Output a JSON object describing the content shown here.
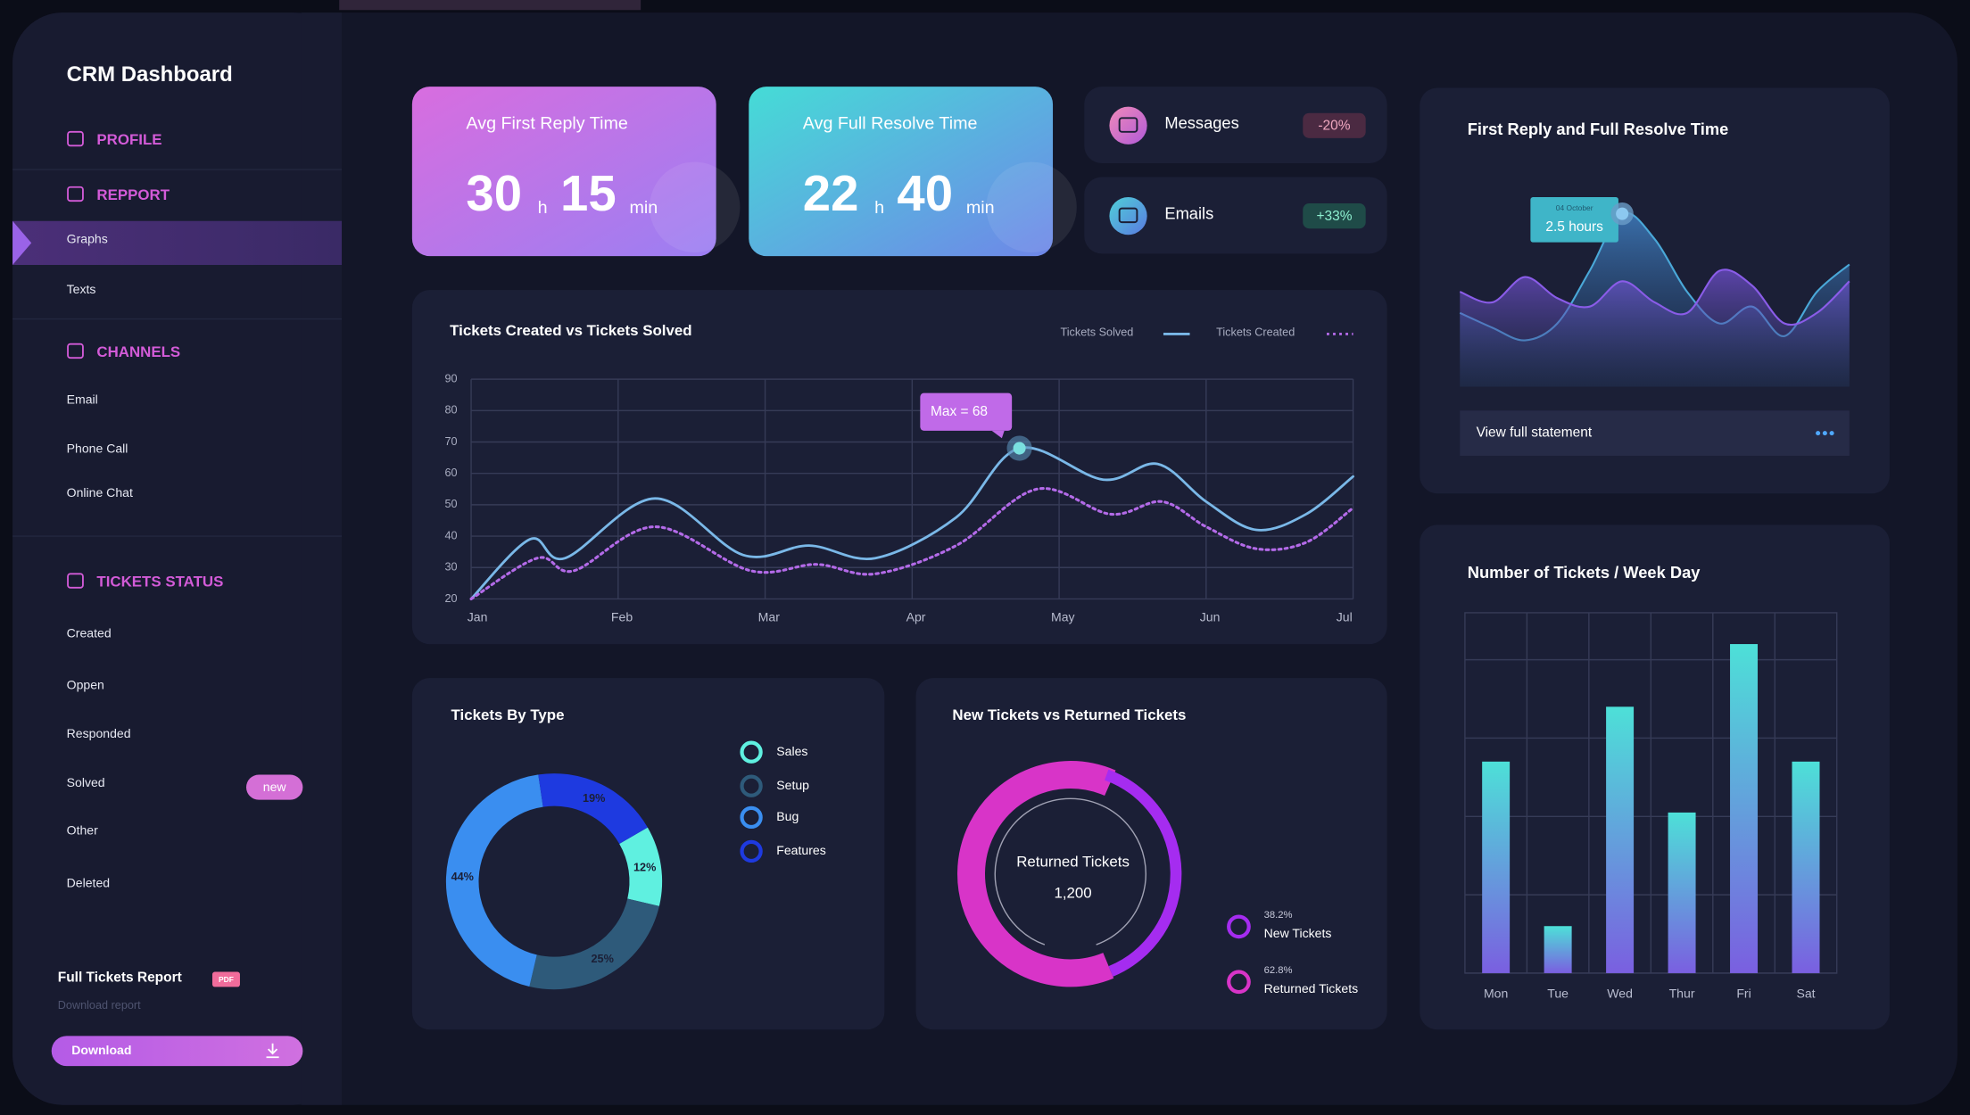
{
  "sidebar": {
    "title": "CRM Dashboard",
    "sections": [
      {
        "label": "PROFILE",
        "items": []
      },
      {
        "label": "REPPORT",
        "items": [
          "Graphs",
          "Texts"
        ]
      },
      {
        "label": "CHANNELS",
        "items": [
          "Email",
          "Phone Call",
          "Online Chat"
        ]
      },
      {
        "label": "TICKETS STATUS",
        "items": [
          "Created",
          "Oppen",
          "Responded",
          "Solved",
          "Other",
          "Deleted"
        ]
      }
    ],
    "badge": "new",
    "report": {
      "title": "Full Tickets Report",
      "tag": "PDF",
      "subtitle": "Download report",
      "button": "Download"
    }
  },
  "kpis": [
    {
      "title": "Avg First Reply Time",
      "hours": 30,
      "hours_unit": "h",
      "minutes": 15,
      "minutes_unit": "min"
    },
    {
      "title": "Avg Full Resolve Time",
      "hours": 22,
      "hours_unit": "h",
      "minutes": 40,
      "minutes_unit": "min"
    }
  ],
  "channels": [
    {
      "label": "Messages",
      "change": "-20%"
    },
    {
      "label": "Emails",
      "change": "+33%"
    }
  ],
  "tickets_chart": {
    "type": "line",
    "title": "Tickets Created vs Tickets Solved",
    "series": [
      {
        "name": "Tickets Solved",
        "color": "#7ab8e8",
        "style": "solid",
        "x": [
          0,
          0.4,
          0.64,
          1.25,
          1.85,
          2.3,
          2.75,
          3.3,
          3.73,
          4.3,
          4.67,
          5.0,
          5.34,
          5.68,
          6
        ],
        "values": [
          20,
          39,
          33,
          52,
          34,
          37,
          33,
          46,
          68,
          58,
          63,
          51,
          42,
          47,
          59
        ]
      },
      {
        "name": "Tickets Created",
        "color": "#b36ae8",
        "style": "dotted",
        "x": [
          0,
          0.45,
          0.7,
          1.25,
          1.9,
          2.35,
          2.75,
          3.3,
          3.85,
          4.35,
          4.7,
          5.0,
          5.34,
          5.68,
          6
        ],
        "values": [
          20,
          33,
          29,
          43,
          29,
          31,
          28,
          37,
          55,
          47,
          51,
          43,
          36,
          38,
          49
        ]
      }
    ],
    "xlim": [
      0,
      6
    ],
    "xticks": [
      {
        "value": 0,
        "label": "Jan"
      },
      {
        "value": 1,
        "label": "Feb"
      },
      {
        "value": 2,
        "label": "Mar"
      },
      {
        "value": 3,
        "label": "Apr"
      },
      {
        "value": 4,
        "label": "May"
      },
      {
        "value": 5,
        "label": "Jun"
      },
      {
        "value": 6,
        "label": "Jul"
      }
    ],
    "ylim": [
      20,
      90
    ],
    "yticks": [
      20,
      30,
      40,
      50,
      60,
      70,
      80,
      90
    ],
    "grid": true,
    "annotation": "Max = 68"
  },
  "type_chart": {
    "type": "donut",
    "title": "Tickets By Type",
    "categories": [
      "Sales",
      "Setup",
      "Bug",
      "Features"
    ],
    "values": [
      12,
      25,
      44,
      19
    ],
    "value_labels": [
      "12%",
      "25%",
      "44%",
      "19%"
    ],
    "colors": [
      "#5ff0e0",
      "#2e5a7a",
      "#3a8ef0",
      "#1e3ae0"
    ]
  },
  "returned_chart": {
    "type": "donut",
    "title": "New Tickets vs Returned Tickets",
    "categories": [
      "New Tickets",
      "Returned Tickets"
    ],
    "values": [
      38.2,
      62.8
    ],
    "value_labels": [
      "38.2%",
      "62.8%"
    ],
    "colors": [
      "#a52cf0",
      "#d834c8"
    ],
    "center_label": "Returned Tickets",
    "center_value": "1,200"
  },
  "time_chart": {
    "type": "area",
    "title": "First Reply and Full Resolve Time",
    "series": [
      {
        "color": "#4aa8d8",
        "values": [
          35,
          28,
          22,
          30,
          55,
          82,
          70,
          45,
          30,
          38,
          24,
          45,
          58
        ]
      },
      {
        "color": "#8a5ce8",
        "values": [
          45,
          40,
          52,
          42,
          38,
          50,
          40,
          35,
          55,
          48,
          30,
          35,
          50
        ]
      }
    ],
    "ylim": [
      0,
      100
    ],
    "tooltip": {
      "date": "04 October",
      "value": "2.5 hours"
    },
    "button": "View full statement"
  },
  "weekday_chart": {
    "type": "bar",
    "title": "Number of Tickets / Week Day",
    "categories": [
      "Mon",
      "Tue",
      "Wed",
      "Thur",
      "Fri",
      "Sat"
    ],
    "values": [
      2.7,
      0.6,
      3.4,
      2.05,
      4.2,
      2.7
    ],
    "ylim": [
      0,
      4.6
    ],
    "grid_lines": [
      0,
      1,
      2,
      3,
      4
    ],
    "color": "#4de0d8"
  }
}
